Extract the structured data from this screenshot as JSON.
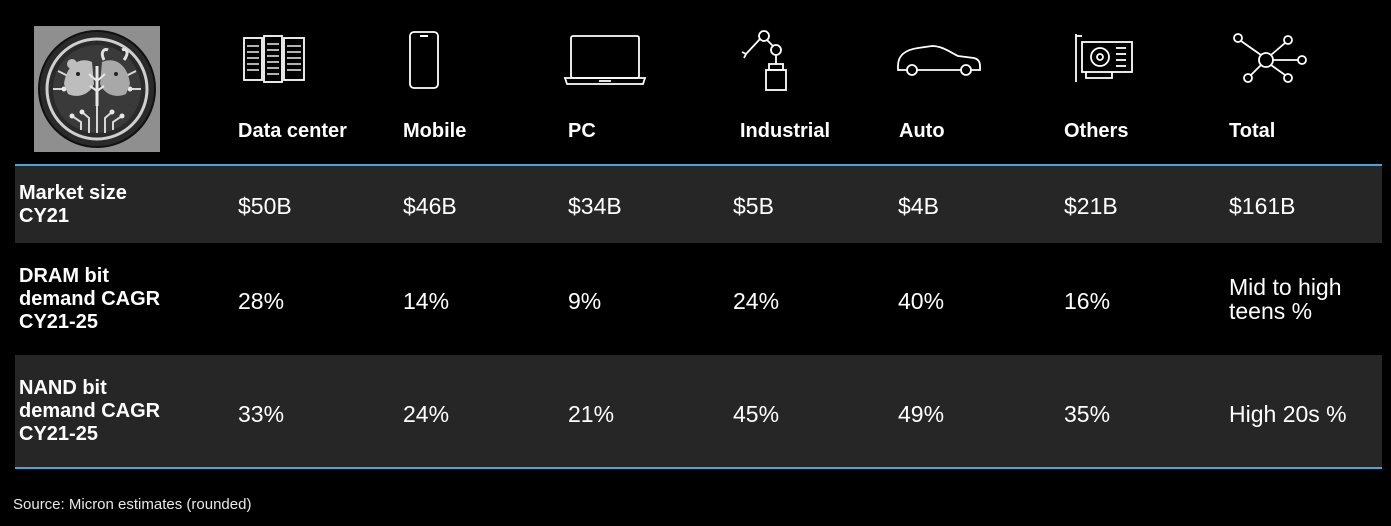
{
  "columns": [
    {
      "label": "Data center",
      "icon": "server-rack-icon"
    },
    {
      "label": "Mobile",
      "icon": "smartphone-icon"
    },
    {
      "label": "PC",
      "icon": "laptop-icon"
    },
    {
      "label": "Industrial",
      "icon": "robot-arm-icon"
    },
    {
      "label": "Auto",
      "icon": "car-icon"
    },
    {
      "label": "Others",
      "icon": "graphics-card-icon"
    },
    {
      "label": "Total",
      "icon": "network-nodes-icon"
    }
  ],
  "rows": [
    {
      "label": "Market size\nCY21",
      "values": [
        "$50B",
        "$46B",
        "$34B",
        "$5B",
        "$4B",
        "$21B",
        "$161B"
      ]
    },
    {
      "label": "DRAM bit\ndemand CAGR\nCY21-25",
      "values": [
        "28%",
        "14%",
        "9%",
        "24%",
        "40%",
        "16%",
        "Mid to high\nteens %"
      ]
    },
    {
      "label": "NAND bit\ndemand CAGR\nCY21-25",
      "values": [
        "33%",
        "24%",
        "21%",
        "45%",
        "49%",
        "35%",
        "High 20s %"
      ]
    }
  ],
  "source": "Source: Micron estimates (rounded)",
  "colors": {
    "background": "#000000",
    "row_shade": "#262626",
    "rule": "#4aa3d9",
    "logo_bg": "#8f8f8f"
  }
}
